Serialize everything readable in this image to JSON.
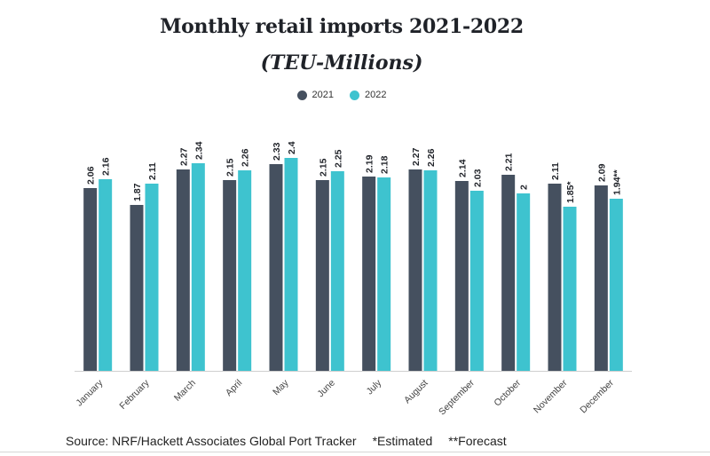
{
  "colors": {
    "series_2021": "#45505f",
    "series_2022": "#3ec3cf",
    "axis": "#cfcfcf",
    "text": "#1f2228"
  },
  "chart_data": {
    "type": "bar",
    "title": "Monthly retail imports 2021-2022",
    "subtitle": "(TEU-Millions)",
    "categories": [
      "January",
      "February",
      "March",
      "April",
      "May",
      "June",
      "July",
      "August",
      "September",
      "October",
      "November",
      "December"
    ],
    "series": [
      {
        "name": "2021",
        "values": [
          2.06,
          1.87,
          2.27,
          2.15,
          2.33,
          2.15,
          2.19,
          2.27,
          2.14,
          2.21,
          2.11,
          2.09
        ]
      },
      {
        "name": "2022",
        "values": [
          2.16,
          2.11,
          2.34,
          2.26,
          2.4,
          2.25,
          2.18,
          2.26,
          2.03,
          2.0,
          1.85,
          1.94
        ]
      }
    ],
    "data_labels": {
      "2021": [
        "2.06",
        "1.87",
        "2.27",
        "2.15",
        "2.33",
        "2.15",
        "2.19",
        "2.27",
        "2.14",
        "2.21",
        "2.11",
        "2.09"
      ],
      "2022": [
        "2.16",
        "2.11",
        "2.34",
        "2.26",
        "2.4",
        "2.25",
        "2.18",
        "2.26",
        "2.03",
        "2",
        "1.85*",
        "1.94**"
      ]
    },
    "ylim": [
      0,
      2.55
    ],
    "grid": false,
    "legend": "top-center"
  },
  "footer": {
    "source": "Source: NRF/Hackett Associates Global Port Tracker",
    "estimated": "*Estimated",
    "forecast": "**Forecast"
  }
}
